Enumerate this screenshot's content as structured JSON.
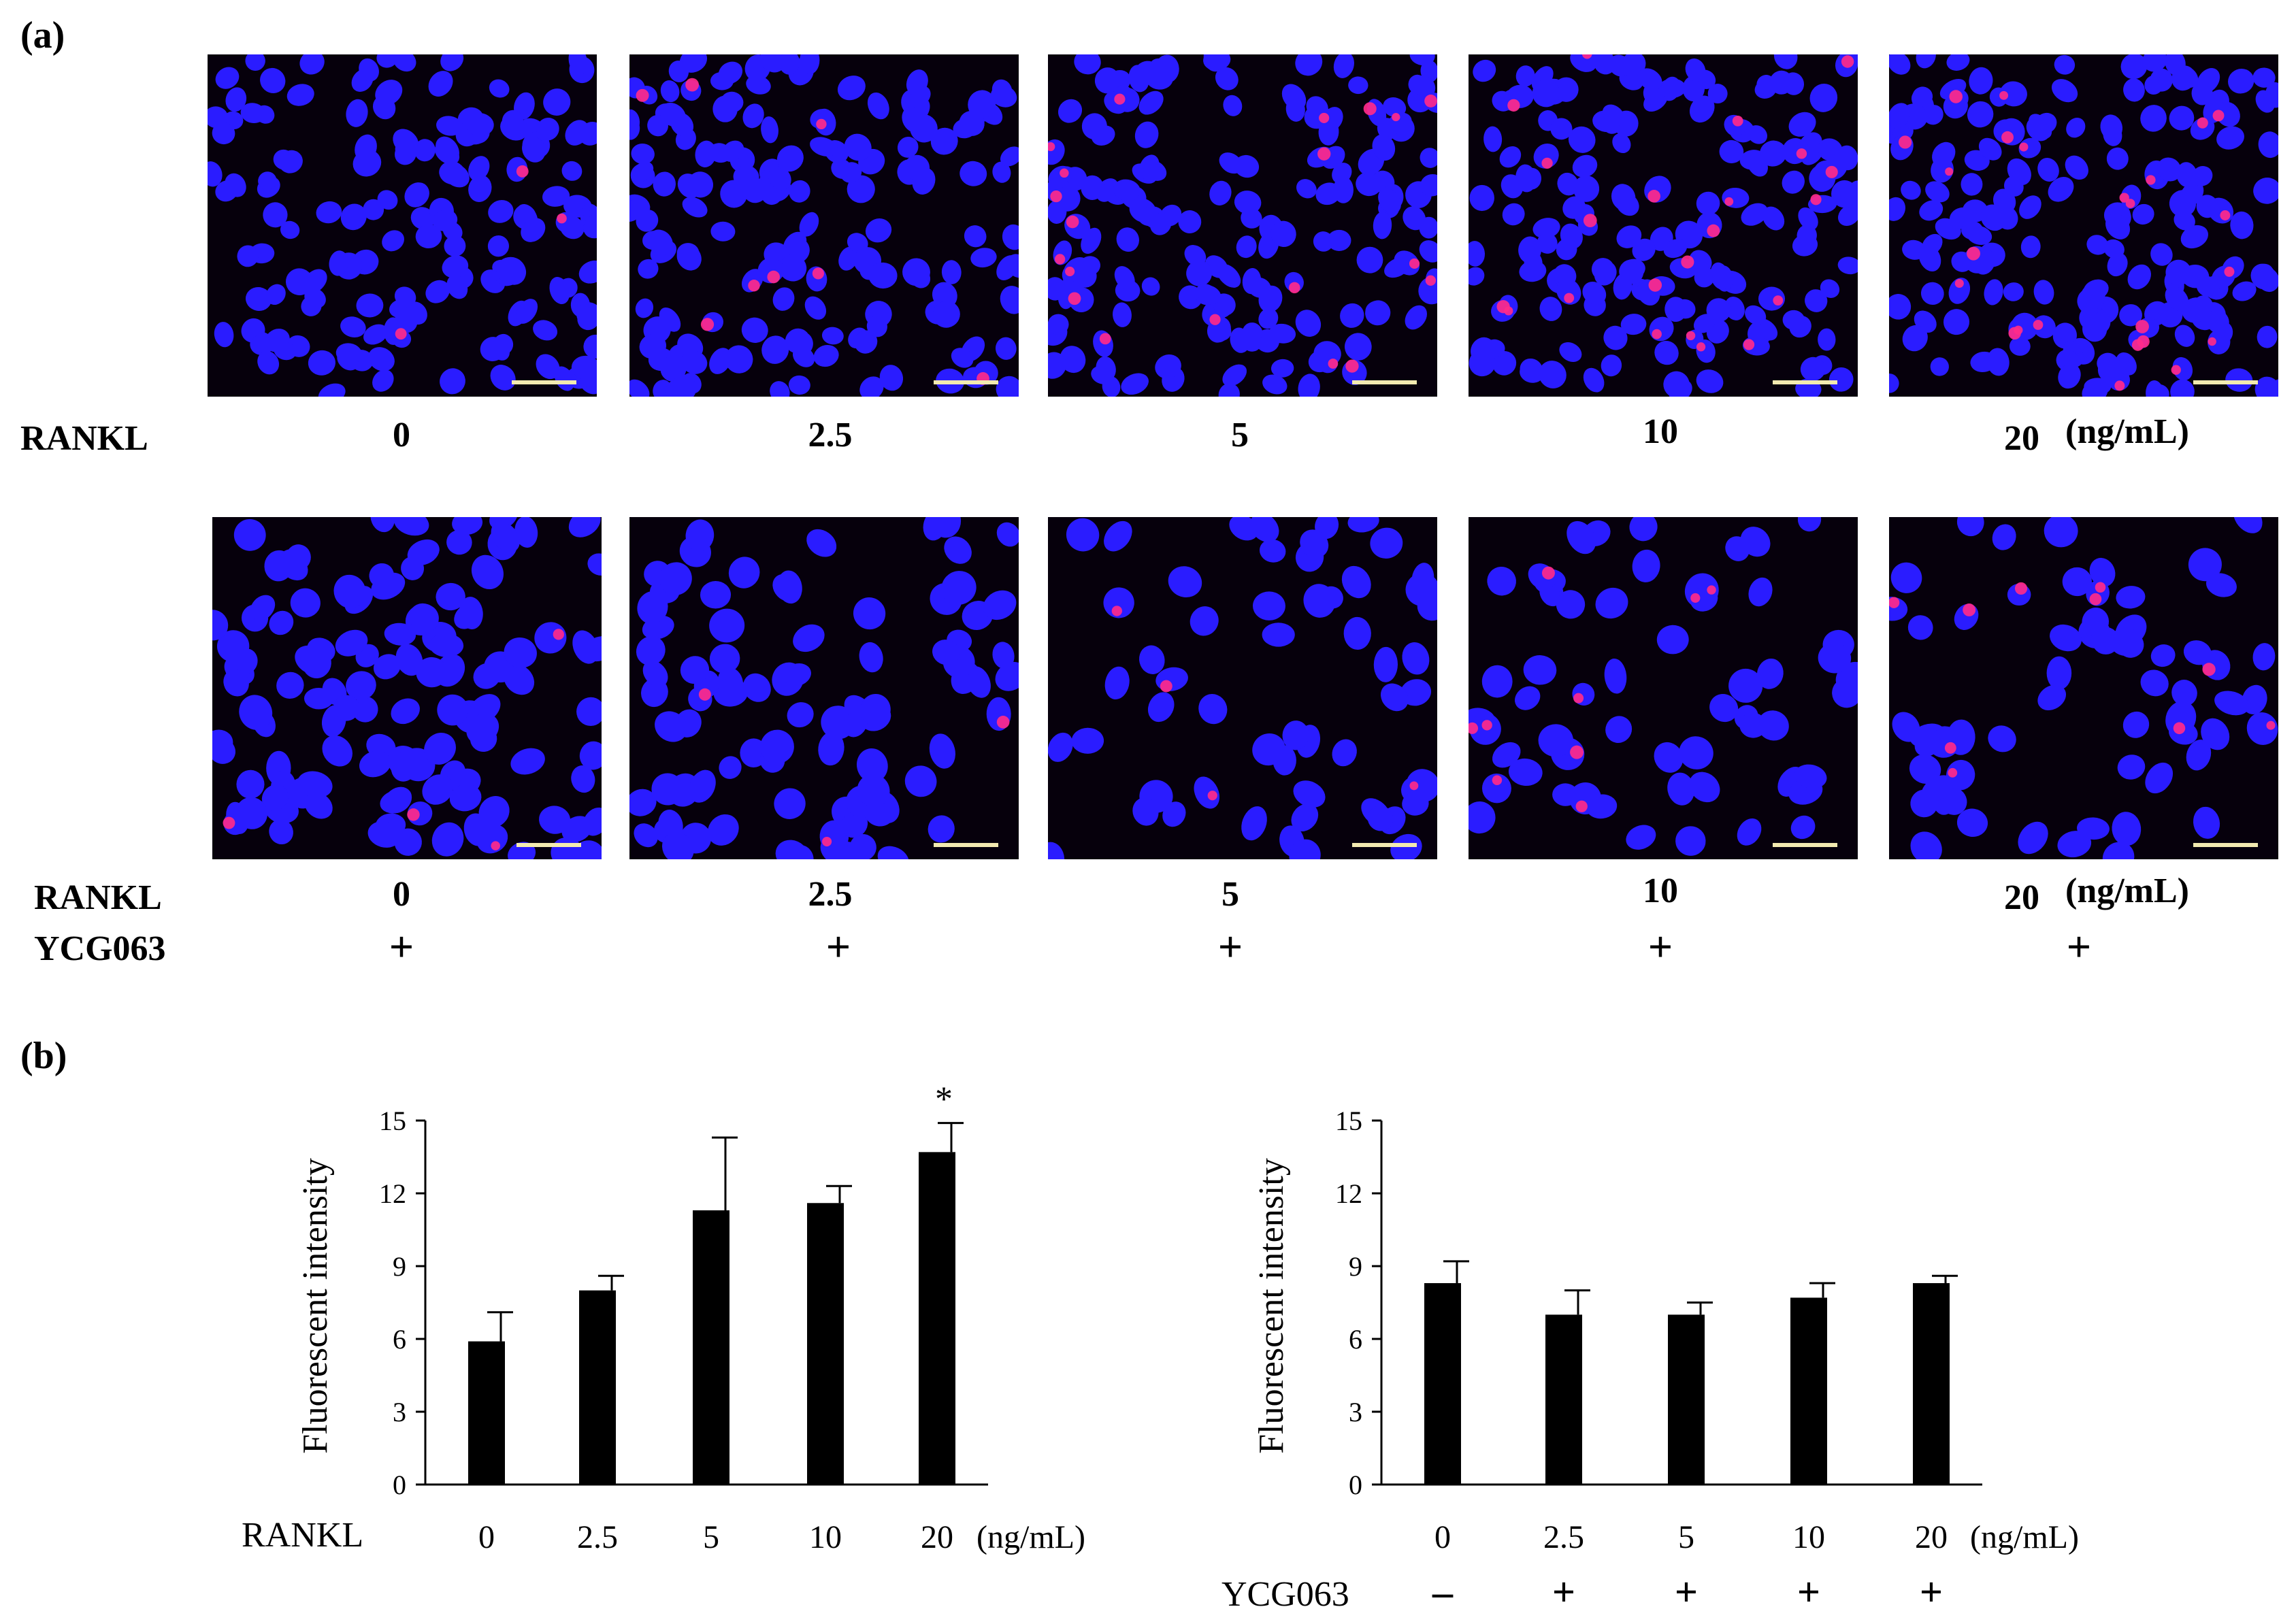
{
  "panel_a": {
    "label": "(a)",
    "row1": {
      "factor": "RANKL",
      "unit": "(ng/mL)",
      "doses": [
        "0",
        "2.5",
        "5",
        "10",
        "20"
      ],
      "pink_counts": [
        3,
        8,
        20,
        22,
        24
      ]
    },
    "row2": {
      "factor": "RANKL",
      "factor2": "YCG063",
      "unit": "(ng/mL)",
      "doses": [
        "0",
        "2.5",
        "5",
        "10",
        "20"
      ],
      "treatment": [
        "+",
        "+",
        "+",
        "+",
        "+"
      ],
      "pink_counts": [
        4,
        3,
        4,
        9,
        10
      ]
    },
    "image_colors": {
      "background": "#06000c",
      "nucleus": "#2a1cff",
      "signal": "#ff2a8a",
      "scalebar": "#f2eab0"
    }
  },
  "panel_b": {
    "label": "(b)",
    "bar_color": "#000000"
  },
  "chart_data": [
    {
      "type": "bar",
      "ylabel": "Fluorescent intensity",
      "ylim": [
        0,
        15
      ],
      "yticks": [
        0,
        3,
        6,
        9,
        12,
        15
      ],
      "xlabel": "RANKL",
      "unit": "(ng/mL)",
      "categories": [
        "0",
        "2.5",
        "5",
        "10",
        "20"
      ],
      "values": [
        5.9,
        8.0,
        11.3,
        11.6,
        13.7
      ],
      "errors": [
        1.2,
        0.6,
        3.0,
        0.7,
        1.2
      ],
      "annotations": [
        "",
        "",
        "",
        "",
        "*"
      ]
    },
    {
      "type": "bar",
      "ylabel": "Fluorescent intensity",
      "ylim": [
        0,
        15
      ],
      "yticks": [
        0,
        3,
        6,
        9,
        12,
        15
      ],
      "xlabel": "",
      "unit": "(ng/mL)",
      "categories": [
        "0",
        "2.5",
        "5",
        "10",
        "20"
      ],
      "values": [
        8.3,
        7.0,
        7.0,
        7.7,
        8.3
      ],
      "errors": [
        0.9,
        1.0,
        0.5,
        0.6,
        0.3
      ],
      "treatment_label": "YCG063",
      "treatment": [
        "–",
        "+",
        "+",
        "+",
        "+"
      ]
    }
  ]
}
